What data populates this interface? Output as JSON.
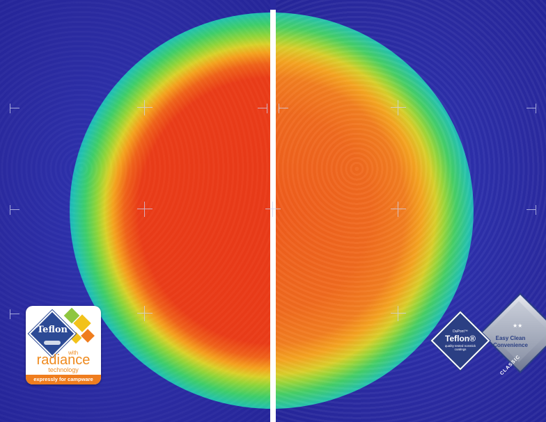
{
  "left_badge": {
    "brand": "Teflon",
    "with": "with",
    "name": "radiance",
    "sub": "technology",
    "bar": "expressly for campware",
    "colors": {
      "brand_blue": "#2c4a95",
      "orange": "#ef7d1e",
      "yellow": "#f2c21a",
      "green": "#8ec63f"
    }
  },
  "right_badge": {
    "dupont": "DuPont™",
    "brand": "Teflon®",
    "sub": "quality tested nonstick coatings",
    "feature": "Easy Clean Convenience",
    "stars": "★★",
    "grade": "CLASSIC",
    "colors": {
      "navy": "#2b3f83",
      "silver": "#9da4b6"
    }
  },
  "heatmap": {
    "left_core_color": "#e93a18",
    "right_core_color": "#f06a1e",
    "background_color": "#2a2aa0"
  }
}
